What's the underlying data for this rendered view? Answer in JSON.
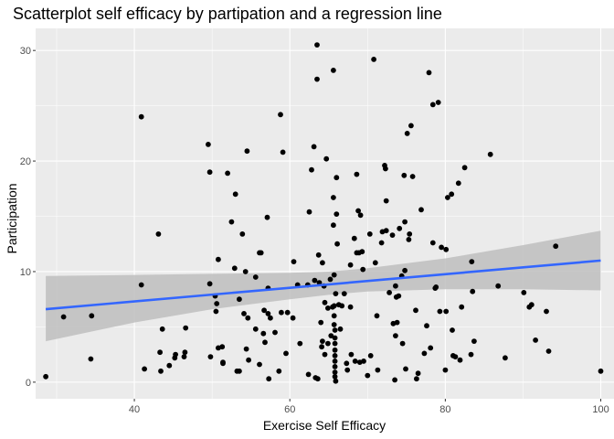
{
  "chart_data": {
    "type": "scatter",
    "title": "Scatterplot self efficacy by partipation and a regression line",
    "xlabel": "Exercise Self Efficacy",
    "ylabel": "Participation",
    "xlim": [
      27.3,
      101.7
    ],
    "ylim": [
      -1.5,
      32.0
    ],
    "x_ticks": [
      40,
      60,
      80,
      100
    ],
    "y_ticks": [
      0,
      10,
      20,
      30
    ],
    "grid": true,
    "legend": "none",
    "colors": {
      "panel": "#EBEBEB",
      "grid": "#FFFFFF",
      "points": "#000000",
      "line": "#3366FF",
      "band": "#BEBEBE",
      "tick_label": "#4D4D4D"
    },
    "regression": {
      "x": [
        28.6,
        100.0
      ],
      "y": [
        6.6,
        11.0
      ]
    },
    "confidence_band": {
      "x": [
        28.6,
        40,
        50,
        60,
        65,
        70,
        80,
        90,
        100
      ],
      "upper": [
        9.6,
        9.7,
        9.8,
        9.9,
        10.0,
        10.3,
        11.2,
        12.4,
        13.7
      ],
      "lower": [
        3.7,
        5.4,
        6.6,
        7.5,
        7.9,
        8.2,
        8.4,
        8.4,
        8.3
      ]
    },
    "points": [
      [
        28.6,
        0.5
      ],
      [
        30.9,
        5.9
      ],
      [
        34.5,
        6.0
      ],
      [
        34.4,
        2.1
      ],
      [
        40.9,
        24.0
      ],
      [
        40.9,
        8.8
      ],
      [
        41.3,
        1.2
      ],
      [
        43.1,
        13.4
      ],
      [
        43.6,
        4.8
      ],
      [
        43.3,
        2.7
      ],
      [
        43.4,
        1.0
      ],
      [
        44.5,
        1.5
      ],
      [
        45.2,
        2.2
      ],
      [
        45.3,
        2.5
      ],
      [
        46.4,
        2.3
      ],
      [
        46.5,
        2.7
      ],
      [
        46.6,
        4.9
      ],
      [
        49.5,
        21.5
      ],
      [
        49.7,
        19.0
      ],
      [
        49.7,
        8.9
      ],
      [
        49.8,
        2.3
      ],
      [
        50.4,
        7.8
      ],
      [
        50.5,
        6.4
      ],
      [
        50.6,
        7.1
      ],
      [
        50.8,
        3.1
      ],
      [
        50.8,
        11.1
      ],
      [
        51.3,
        3.2
      ],
      [
        51.4,
        1.8
      ],
      [
        51.4,
        1.7
      ],
      [
        52.0,
        18.9
      ],
      [
        52.5,
        14.5
      ],
      [
        52.9,
        10.3
      ],
      [
        53.0,
        17.0
      ],
      [
        53.2,
        1.0
      ],
      [
        53.5,
        7.5
      ],
      [
        53.5,
        1.0
      ],
      [
        53.9,
        13.4
      ],
      [
        54.1,
        6.2
      ],
      [
        54.3,
        10.0
      ],
      [
        54.4,
        3.0
      ],
      [
        54.5,
        20.9
      ],
      [
        54.6,
        5.8
      ],
      [
        54.7,
        2.0
      ],
      [
        55.6,
        9.5
      ],
      [
        55.6,
        4.8
      ],
      [
        56.1,
        11.7
      ],
      [
        56.1,
        1.6
      ],
      [
        56.3,
        11.7
      ],
      [
        56.6,
        4.4
      ],
      [
        56.7,
        6.5
      ],
      [
        56.8,
        3.6
      ],
      [
        57.1,
        14.9
      ],
      [
        57.2,
        8.5
      ],
      [
        57.2,
        6.2
      ],
      [
        57.3,
        0.3
      ],
      [
        57.5,
        5.8
      ],
      [
        58.1,
        4.5
      ],
      [
        58.6,
        1.0
      ],
      [
        58.8,
        24.2
      ],
      [
        58.9,
        6.3
      ],
      [
        59.1,
        20.8
      ],
      [
        59.5,
        2.6
      ],
      [
        59.7,
        6.3
      ],
      [
        60.4,
        5.8
      ],
      [
        60.5,
        10.9
      ],
      [
        61.0,
        8.8
      ],
      [
        61.3,
        3.5
      ],
      [
        62.3,
        8.8
      ],
      [
        62.4,
        0.7
      ],
      [
        62.5,
        15.4
      ],
      [
        62.8,
        19.2
      ],
      [
        63.1,
        21.3
      ],
      [
        63.2,
        9.2
      ],
      [
        63.3,
        0.4
      ],
      [
        63.5,
        30.5
      ],
      [
        63.5,
        27.4
      ],
      [
        63.6,
        0.3
      ],
      [
        63.7,
        11.5
      ],
      [
        63.8,
        9.0
      ],
      [
        64.0,
        5.4
      ],
      [
        64.1,
        3.2
      ],
      [
        64.2,
        10.8
      ],
      [
        64.2,
        3.7
      ],
      [
        64.4,
        8.7
      ],
      [
        64.5,
        7.2
      ],
      [
        64.5,
        2.5
      ],
      [
        64.7,
        20.2
      ],
      [
        64.9,
        3.5
      ],
      [
        64.9,
        6.7
      ],
      [
        65.2,
        9.3
      ],
      [
        65.3,
        4.2
      ],
      [
        65.5,
        6.8
      ],
      [
        65.6,
        28.2
      ],
      [
        65.6,
        16.7
      ],
      [
        65.6,
        14.2
      ],
      [
        65.7,
        9.7
      ],
      [
        65.7,
        6.9
      ],
      [
        65.7,
        6.0
      ],
      [
        65.7,
        5.2
      ],
      [
        65.8,
        4.7
      ],
      [
        65.8,
        4.0
      ],
      [
        65.8,
        3.5
      ],
      [
        65.8,
        2.9
      ],
      [
        65.8,
        2.4
      ],
      [
        65.8,
        1.9
      ],
      [
        65.8,
        1.4
      ],
      [
        65.8,
        0.9
      ],
      [
        65.8,
        0.5
      ],
      [
        65.9,
        0.1
      ],
      [
        65.9,
        8.0
      ],
      [
        66.0,
        18.5
      ],
      [
        66.0,
        15.2
      ],
      [
        66.1,
        12.5
      ],
      [
        66.3,
        7.0
      ],
      [
        66.5,
        4.8
      ],
      [
        66.7,
        6.9
      ],
      [
        67.0,
        8.0
      ],
      [
        67.3,
        1.7
      ],
      [
        67.4,
        1.1
      ],
      [
        67.8,
        6.8
      ],
      [
        67.8,
        10.6
      ],
      [
        67.9,
        2.5
      ],
      [
        68.3,
        13.0
      ],
      [
        68.4,
        1.9
      ],
      [
        68.6,
        11.7
      ],
      [
        68.6,
        18.8
      ],
      [
        68.8,
        15.5
      ],
      [
        68.9,
        11.7
      ],
      [
        69.0,
        1.8
      ],
      [
        69.1,
        15.1
      ],
      [
        69.3,
        11.8
      ],
      [
        69.4,
        10.2
      ],
      [
        69.5,
        1.9
      ],
      [
        70.0,
        0.6
      ],
      [
        70.3,
        13.4
      ],
      [
        70.4,
        2.4
      ],
      [
        70.8,
        29.2
      ],
      [
        71.0,
        10.8
      ],
      [
        71.2,
        6.0
      ],
      [
        71.3,
        1.1
      ],
      [
        71.8,
        12.6
      ],
      [
        71.9,
        13.6
      ],
      [
        72.2,
        19.6
      ],
      [
        72.3,
        19.3
      ],
      [
        72.4,
        13.7
      ],
      [
        72.4,
        16.4
      ],
      [
        72.8,
        8.1
      ],
      [
        73.2,
        13.3
      ],
      [
        73.3,
        5.3
      ],
      [
        73.5,
        0.2
      ],
      [
        73.6,
        8.7
      ],
      [
        73.6,
        4.2
      ],
      [
        73.7,
        7.7
      ],
      [
        73.8,
        5.4
      ],
      [
        74.0,
        7.8
      ],
      [
        74.1,
        13.9
      ],
      [
        74.4,
        9.6
      ],
      [
        74.5,
        3.5
      ],
      [
        74.7,
        18.7
      ],
      [
        74.8,
        10.1
      ],
      [
        74.8,
        14.5
      ],
      [
        74.9,
        1.2
      ],
      [
        75.1,
        22.5
      ],
      [
        75.3,
        12.9
      ],
      [
        75.4,
        13.4
      ],
      [
        75.6,
        23.2
      ],
      [
        75.8,
        18.6
      ],
      [
        76.2,
        6.5
      ],
      [
        76.3,
        0.3
      ],
      [
        76.5,
        0.8
      ],
      [
        76.9,
        15.6
      ],
      [
        77.3,
        2.6
      ],
      [
        77.6,
        5.1
      ],
      [
        77.9,
        28.0
      ],
      [
        78.1,
        3.1
      ],
      [
        78.4,
        12.6
      ],
      [
        78.4,
        25.1
      ],
      [
        78.7,
        8.5
      ],
      [
        78.8,
        8.6
      ],
      [
        79.1,
        25.3
      ],
      [
        79.3,
        6.4
      ],
      [
        79.5,
        12.2
      ],
      [
        80.0,
        1.1
      ],
      [
        80.1,
        12.0
      ],
      [
        80.1,
        6.4
      ],
      [
        80.3,
        16.7
      ],
      [
        80.8,
        17.0
      ],
      [
        80.9,
        4.7
      ],
      [
        81.0,
        2.4
      ],
      [
        81.3,
        2.3
      ],
      [
        81.7,
        18.0
      ],
      [
        81.9,
        2.0
      ],
      [
        82.1,
        6.8
      ],
      [
        82.5,
        19.4
      ],
      [
        83.3,
        2.5
      ],
      [
        83.4,
        10.9
      ],
      [
        83.5,
        8.2
      ],
      [
        83.7,
        3.7
      ],
      [
        85.8,
        20.6
      ],
      [
        86.8,
        8.7
      ],
      [
        87.7,
        2.2
      ],
      [
        90.1,
        8.1
      ],
      [
        90.8,
        6.8
      ],
      [
        91.1,
        7.0
      ],
      [
        91.6,
        3.8
      ],
      [
        93.0,
        6.4
      ],
      [
        93.3,
        2.8
      ],
      [
        94.2,
        12.3
      ],
      [
        100.0,
        1.0
      ]
    ]
  }
}
